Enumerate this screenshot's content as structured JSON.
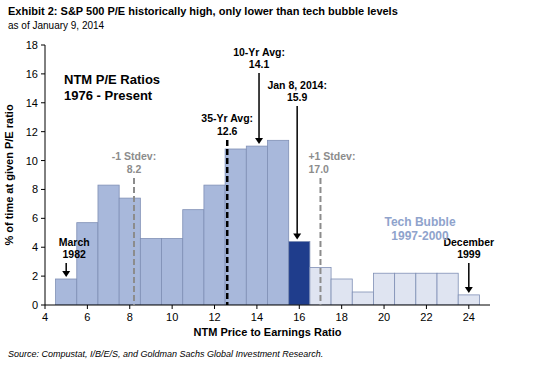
{
  "chart_data": {
    "type": "histogram",
    "title": "Exhibit 2: S&P 500 P/E historically high, only lower than tech bubble levels",
    "subtitle": "as of January 9, 2014",
    "inner_title": [
      "NTM P/E Ratios",
      "1976 - Present"
    ],
    "x_label": "NTM Price to Earnings Ratio",
    "y_label": "% of time at given P/E ratio",
    "source": "Source: Compustat, I/B/E/S, and Goldman Sachs Global Investment Research.",
    "bins": [
      4.5,
      5.5,
      6.5,
      7.5,
      8.5,
      9.5,
      10.5,
      11.5,
      12.5,
      13.5,
      14.5,
      15.5,
      16.5,
      17.5,
      18.5,
      19.5,
      20.5,
      21.5,
      22.5,
      23.5,
      24.5
    ],
    "values": [
      1.8,
      5.7,
      8.3,
      7.4,
      4.6,
      4.6,
      6.6,
      8.3,
      10.8,
      11.0,
      11.4,
      4.4,
      2.6,
      1.8,
      0.9,
      2.2,
      2.2,
      2.2,
      2.2,
      0.7
    ],
    "colors": [
      "#a8b8db",
      "#a8b8db",
      "#a8b8db",
      "#a8b8db",
      "#a8b8db",
      "#a8b8db",
      "#a8b8db",
      "#a8b8db",
      "#a8b8db",
      "#a8b8db",
      "#a8b8db",
      "#1f3d8c",
      "#dfe4f1",
      "#dfe4f1",
      "#dfe4f1",
      "#dfe4f1",
      "#dfe4f1",
      "#dfe4f1",
      "#dfe4f1",
      "#dfe4f1"
    ],
    "xlim": [
      4,
      25
    ],
    "xticks": [
      4,
      6,
      8,
      10,
      12,
      14,
      16,
      18,
      20,
      22,
      24
    ],
    "ylim": [
      0,
      18
    ],
    "yticks": [
      0,
      2,
      4,
      6,
      8,
      10,
      12,
      14,
      16,
      18
    ],
    "grid": false,
    "reference_lines": [
      {
        "text": "-1 Stdev:",
        "value": 8.2,
        "label": "8.2",
        "color": "#8c8c8c",
        "line_style": "dashed"
      },
      {
        "text": "35-Yr Avg:",
        "value": 12.6,
        "label": "12.6",
        "color": "#000000",
        "line_style": "dashed"
      },
      {
        "text": "+1 Stdev:",
        "value": 17.0,
        "label": "17.0",
        "color": "#8c8c8c",
        "line_style": "dashed"
      }
    ],
    "arrows": [
      {
        "lines": [
          "March",
          "1982"
        ],
        "value": 5
      },
      {
        "lines": [
          "10-Yr Avg:"
        ],
        "value": 14.1,
        "label": "14.1"
      },
      {
        "lines": [
          "Jan 8, 2014:"
        ],
        "value": 15.9,
        "label": "15.9"
      },
      {
        "lines": [
          "December",
          "1999"
        ],
        "value": 24
      }
    ],
    "region_label": [
      "Tech Bubble",
      "1997-2000"
    ]
  }
}
